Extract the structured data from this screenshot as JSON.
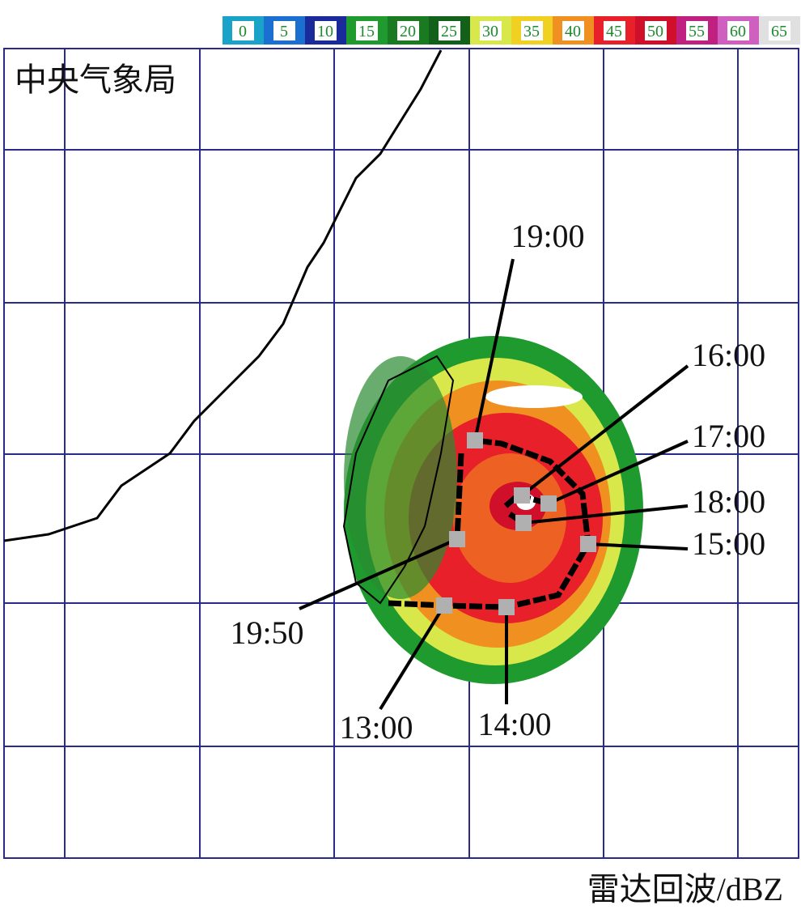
{
  "header": {
    "agency": "中央气象局"
  },
  "legend": {
    "labels": [
      "0",
      "5",
      "10",
      "15",
      "20",
      "25",
      "30",
      "35",
      "40",
      "45",
      "50",
      "55",
      "60",
      "65"
    ],
    "colors": [
      "#1aa3c8",
      "#1b6fd0",
      "#1a2a9a",
      "#1e9a2e",
      "#1a7a22",
      "#13601b",
      "#d8e84a",
      "#f0d020",
      "#f09020",
      "#e8202a",
      "#d0102a",
      "#c02080",
      "#d060c0",
      "#e0e0e0"
    ]
  },
  "track_labels": [
    "19:00",
    "16:00",
    "17:00",
    "18:00",
    "15:00",
    "19:50",
    "13:00",
    "14:00"
  ],
  "caption": "雷达回波/dBZ"
}
